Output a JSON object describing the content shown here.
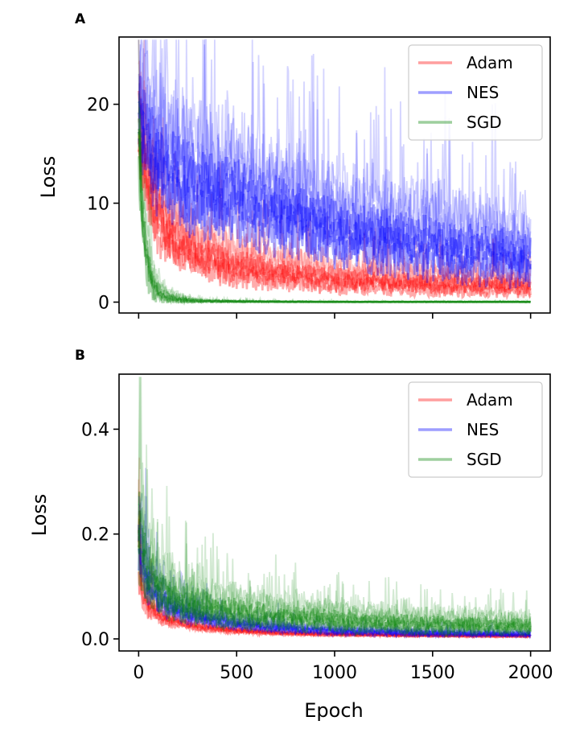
{
  "chart_data": [
    {
      "type": "line",
      "panel_label": "A",
      "xlabel": "",
      "ylabel": "Loss",
      "xlim": [
        -100,
        2100
      ],
      "ylim": [
        -1.1,
        26.8
      ],
      "x_ticks": [
        0,
        500,
        1000,
        1500,
        2000
      ],
      "x_tick_labels_visible": false,
      "y_ticks": [
        0,
        10,
        20
      ],
      "y_tick_labels": [
        "0",
        "10",
        "20"
      ],
      "legend_position": "top-right",
      "grid": false,
      "series": [
        {
          "name": "Adam",
          "color": "#ff0000",
          "x": [
            0,
            25,
            50,
            100,
            150,
            200,
            300,
            400,
            500,
            600,
            700,
            800,
            900,
            1000,
            1200,
            1400,
            1600,
            1800,
            2000
          ],
          "center": [
            17,
            14,
            11,
            8,
            6.5,
            5.5,
            4.5,
            3.8,
            3.3,
            3.0,
            2.7,
            2.5,
            2.3,
            2.1,
            1.9,
            1.7,
            1.6,
            1.5,
            1.4
          ],
          "spread": [
            6,
            6,
            5,
            4.5,
            4,
            3.5,
            3,
            2.8,
            2.6,
            2.4,
            2.2,
            2.0,
            1.9,
            1.8,
            1.7,
            1.6,
            1.5,
            1.4,
            1.3
          ]
        },
        {
          "name": "NES",
          "color": "#0000ff",
          "x": [
            0,
            25,
            50,
            100,
            150,
            200,
            300,
            400,
            500,
            600,
            700,
            800,
            900,
            1000,
            1200,
            1400,
            1600,
            1800,
            2000
          ],
          "center": [
            19,
            17,
            15.5,
            13.5,
            12.5,
            12,
            11,
            10.5,
            10,
            9.3,
            8.7,
            8.2,
            7.6,
            7.1,
            6.3,
            5.6,
            5.0,
            4.6,
            4.2
          ],
          "spread": [
            6,
            7,
            7,
            7,
            7,
            6.5,
            6.5,
            6,
            6,
            5.8,
            5.6,
            5.4,
            5.2,
            5,
            4.8,
            4.6,
            4.4,
            4.2,
            4
          ]
        },
        {
          "name": "SGD",
          "color": "#008000",
          "x": [
            0,
            10,
            25,
            50,
            75,
            100,
            150,
            200,
            300,
            500,
            1000,
            1500,
            2000
          ],
          "center": [
            17,
            12,
            7,
            3,
            1.5,
            0.8,
            0.4,
            0.2,
            0.1,
            0.05,
            0.02,
            0.02,
            0.02
          ],
          "spread": [
            5,
            5,
            4,
            3,
            2,
            1.5,
            0.8,
            0.5,
            0.2,
            0.1,
            0.05,
            0.05,
            0.05
          ]
        }
      ]
    },
    {
      "type": "line",
      "panel_label": "B",
      "xlabel": "Epoch",
      "ylabel": "Loss",
      "xlim": [
        -100,
        2100
      ],
      "ylim": [
        -0.023,
        0.505
      ],
      "x_ticks": [
        0,
        500,
        1000,
        1500,
        2000
      ],
      "x_tick_labels": [
        "0",
        "500",
        "1000",
        "1500",
        "2000"
      ],
      "y_ticks": [
        0.0,
        0.2,
        0.4
      ],
      "y_tick_labels": [
        "0.0",
        "0.2",
        "0.4"
      ],
      "legend_position": "top-right",
      "grid": false,
      "series": [
        {
          "name": "Adam",
          "color": "#ff0000",
          "x": [
            0,
            10,
            25,
            50,
            100,
            150,
            200,
            300,
            400,
            500,
            700,
            1000,
            1500,
            2000
          ],
          "center": [
            0.2,
            0.12,
            0.08,
            0.06,
            0.045,
            0.035,
            0.03,
            0.022,
            0.018,
            0.015,
            0.011,
            0.008,
            0.006,
            0.005
          ],
          "spread": [
            0.15,
            0.06,
            0.04,
            0.03,
            0.02,
            0.015,
            0.012,
            0.01,
            0.008,
            0.007,
            0.005,
            0.004,
            0.003,
            0.003
          ]
        },
        {
          "name": "NES",
          "color": "#0000ff",
          "x": [
            0,
            10,
            25,
            50,
            100,
            150,
            200,
            300,
            400,
            500,
            700,
            1000,
            1500,
            2000
          ],
          "center": [
            0.2,
            0.16,
            0.13,
            0.1,
            0.075,
            0.06,
            0.05,
            0.04,
            0.033,
            0.028,
            0.02,
            0.014,
            0.01,
            0.008
          ],
          "spread": [
            0.1,
            0.08,
            0.06,
            0.05,
            0.04,
            0.03,
            0.025,
            0.02,
            0.017,
            0.015,
            0.012,
            0.009,
            0.007,
            0.006
          ]
        },
        {
          "name": "SGD",
          "color": "#008000",
          "x": [
            0,
            10,
            25,
            50,
            100,
            150,
            200,
            300,
            400,
            500,
            700,
            1000,
            1500,
            2000
          ],
          "center": [
            0.2,
            0.18,
            0.15,
            0.12,
            0.095,
            0.08,
            0.07,
            0.06,
            0.053,
            0.047,
            0.04,
            0.032,
            0.025,
            0.022
          ],
          "spread": [
            0.15,
            0.12,
            0.1,
            0.08,
            0.07,
            0.06,
            0.055,
            0.05,
            0.045,
            0.04,
            0.035,
            0.03,
            0.025,
            0.022
          ]
        }
      ]
    }
  ]
}
